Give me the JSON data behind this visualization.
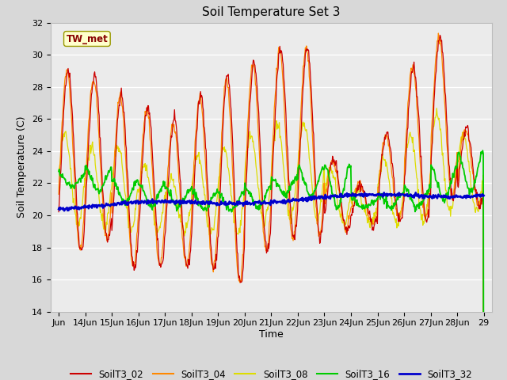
{
  "title": "Soil Temperature Set 3",
  "xlabel": "Time",
  "ylabel": "Soil Temperature (C)",
  "ylim": [
    14,
    32
  ],
  "yticks": [
    14,
    16,
    18,
    20,
    22,
    24,
    26,
    28,
    30,
    32
  ],
  "x_labels": [
    "Jun",
    "14Jun",
    "15Jun",
    "16Jun",
    "17Jun",
    "18Jun",
    "19Jun",
    "20Jun",
    "21Jun",
    "22Jun",
    "23Jun",
    "24Jun",
    "25Jun",
    "26Jun",
    "27Jun",
    "28Jun",
    "29"
  ],
  "annotation_text": "TW_met",
  "annotation_color": "#880000",
  "annotation_bg": "#ffffcc",
  "annotation_border": "#999900",
  "series_colors": {
    "SoilT3_02": "#cc0000",
    "SoilT3_04": "#ff8800",
    "SoilT3_08": "#dddd00",
    "SoilT3_16": "#00cc00",
    "SoilT3_32": "#0000cc"
  },
  "bg_color": "#d8d8d8",
  "plot_bg": "#ebebeb",
  "grid_color": "#ffffff",
  "title_fontsize": 11,
  "axis_label_fontsize": 9,
  "tick_fontsize": 8
}
